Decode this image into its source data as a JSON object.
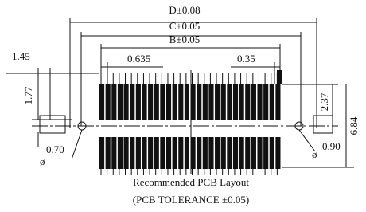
{
  "dimensions": {
    "d": "D±0.08",
    "c": "C±0.05",
    "b": "B±0.05",
    "left_offset": "1.45",
    "pitch": "0.635",
    "pad_width": "0.35",
    "left_height": "1.77",
    "pad_height": "2.37",
    "total_height": "6.84",
    "hole_left": "0.70",
    "hole_right": "0.90",
    "diameter_symbol": "ø"
  },
  "caption": {
    "title": "Recommended PCB Layout",
    "tolerance": "(PCB TOLERANCE ±0.05)"
  }
}
